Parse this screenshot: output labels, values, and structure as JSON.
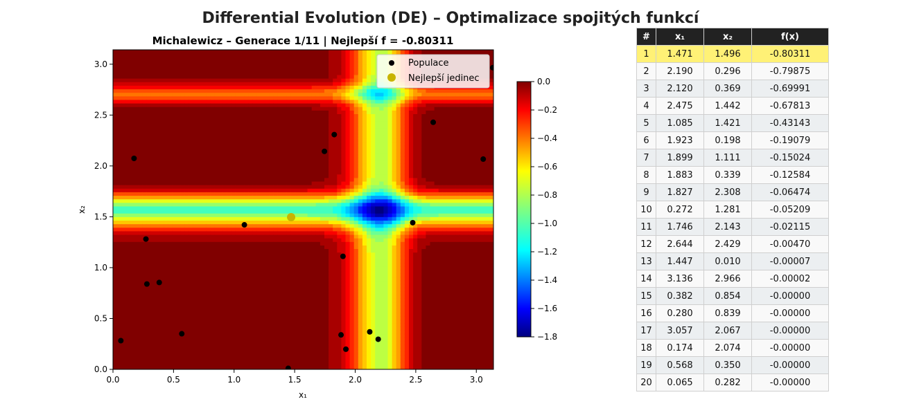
{
  "figure": {
    "suptitle": "Differential Evolution (DE) – Optimalizace spojitých funkcí"
  },
  "chart_data": {
    "type": "scatter",
    "background": "filled contour (jet colormap) of Michalewicz function",
    "title": "Michalewicz – Generace 1/11 | Nejlepší f = -0.80311",
    "xlabel": "x₁",
    "ylabel": "x₂",
    "xlim": [
      0,
      3.14159
    ],
    "ylim": [
      0,
      3.14159
    ],
    "xticks": [
      "0.0",
      "0.5",
      "1.0",
      "1.5",
      "2.0",
      "2.5",
      "3.0"
    ],
    "yticks": [
      "0.0",
      "0.5",
      "1.0",
      "1.5",
      "2.0",
      "2.5",
      "3.0"
    ],
    "colorbar": {
      "min": -1.8,
      "max": 0.0,
      "ticks": [
        "0.0",
        "−0.2",
        "−0.4",
        "−0.6",
        "−0.8",
        "−1.0",
        "−1.2",
        "−1.4",
        "−1.6",
        "−1.8"
      ],
      "colormap": "jet"
    },
    "legend": {
      "position": "top-right",
      "entries": [
        "Populace",
        "Nejlepší jedinec"
      ]
    },
    "series": [
      {
        "name": "Populace",
        "color": "#000000",
        "points": [
          [
            1.471,
            1.496
          ],
          [
            2.19,
            0.296
          ],
          [
            2.12,
            0.369
          ],
          [
            2.475,
            1.442
          ],
          [
            1.085,
            1.421
          ],
          [
            1.923,
            0.198
          ],
          [
            1.899,
            1.111
          ],
          [
            1.883,
            0.339
          ],
          [
            1.827,
            2.308
          ],
          [
            0.272,
            1.281
          ],
          [
            1.746,
            2.143
          ],
          [
            2.644,
            2.429
          ],
          [
            1.447,
            0.01
          ],
          [
            3.136,
            2.966
          ],
          [
            0.382,
            0.854
          ],
          [
            0.28,
            0.839
          ],
          [
            3.057,
            2.067
          ],
          [
            0.174,
            2.074
          ],
          [
            0.568,
            0.35
          ],
          [
            0.065,
            0.282
          ]
        ]
      },
      {
        "name": "Nejlepší jedinec",
        "color": "#c8b400",
        "points": [
          [
            1.471,
            1.496
          ]
        ]
      }
    ]
  },
  "table": {
    "headers": [
      "#",
      "x₁",
      "x₂",
      "f(x)"
    ],
    "best_color": "#fff176",
    "rows": [
      [
        "1",
        "1.471",
        "1.496",
        "-0.80311"
      ],
      [
        "2",
        "2.190",
        "0.296",
        "-0.79875"
      ],
      [
        "3",
        "2.120",
        "0.369",
        "-0.69991"
      ],
      [
        "4",
        "2.475",
        "1.442",
        "-0.67813"
      ],
      [
        "5",
        "1.085",
        "1.421",
        "-0.43143"
      ],
      [
        "6",
        "1.923",
        "0.198",
        "-0.19079"
      ],
      [
        "7",
        "1.899",
        "1.111",
        "-0.15024"
      ],
      [
        "8",
        "1.883",
        "0.339",
        "-0.12584"
      ],
      [
        "9",
        "1.827",
        "2.308",
        "-0.06474"
      ],
      [
        "10",
        "0.272",
        "1.281",
        "-0.05209"
      ],
      [
        "11",
        "1.746",
        "2.143",
        "-0.02115"
      ],
      [
        "12",
        "2.644",
        "2.429",
        "-0.00470"
      ],
      [
        "13",
        "1.447",
        "0.010",
        "-0.00007"
      ],
      [
        "14",
        "3.136",
        "2.966",
        "-0.00002"
      ],
      [
        "15",
        "0.382",
        "0.854",
        "-0.00000"
      ],
      [
        "16",
        "0.280",
        "0.839",
        "-0.00000"
      ],
      [
        "17",
        "3.057",
        "2.067",
        "-0.00000"
      ],
      [
        "18",
        "0.174",
        "2.074",
        "-0.00000"
      ],
      [
        "19",
        "0.568",
        "0.350",
        "-0.00000"
      ],
      [
        "20",
        "0.065",
        "0.282",
        "-0.00000"
      ]
    ]
  }
}
